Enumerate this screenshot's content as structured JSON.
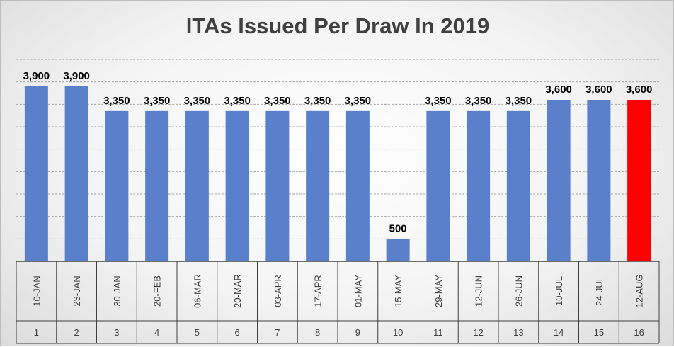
{
  "chart_data": {
    "type": "bar",
    "title": "ITAs Issued Per Draw In 2019",
    "xlabel": "",
    "ylabel": "",
    "ylim": [
      0,
      4500
    ],
    "grid": true,
    "legend": "none",
    "data_labels": [
      "3,900",
      "3,900",
      "3,350",
      "3,350",
      "3,350",
      "3,350",
      "3,350",
      "3,350",
      "3,350",
      "500",
      "3,350",
      "3,350",
      "3,350",
      "3,600",
      "3,600",
      "3,600"
    ],
    "categories": [
      "10-JAN",
      "23-JAN",
      "30-JAN",
      "20-FEB",
      "06-MAR",
      "20-MAR",
      "03-APR",
      "17-APR",
      "01-MAY",
      "15-MAY",
      "29-MAY",
      "12-JUN",
      "26-JUN",
      "10-JUL",
      "24-JUL",
      "12-AUG"
    ],
    "draw_numbers": [
      "1",
      "2",
      "3",
      "4",
      "5",
      "6",
      "7",
      "8",
      "9",
      "10",
      "11",
      "12",
      "13",
      "14",
      "15",
      "16"
    ],
    "values": [
      3900,
      3900,
      3350,
      3350,
      3350,
      3350,
      3350,
      3350,
      3350,
      500,
      3350,
      3350,
      3350,
      3600,
      3600,
      3600
    ],
    "colors": {
      "bar": "#5b80cb",
      "highlight": "#ff0000",
      "highlight_index": 15,
      "grid": "#a6a6a6",
      "axis": "#404040",
      "label": "#000000"
    }
  }
}
